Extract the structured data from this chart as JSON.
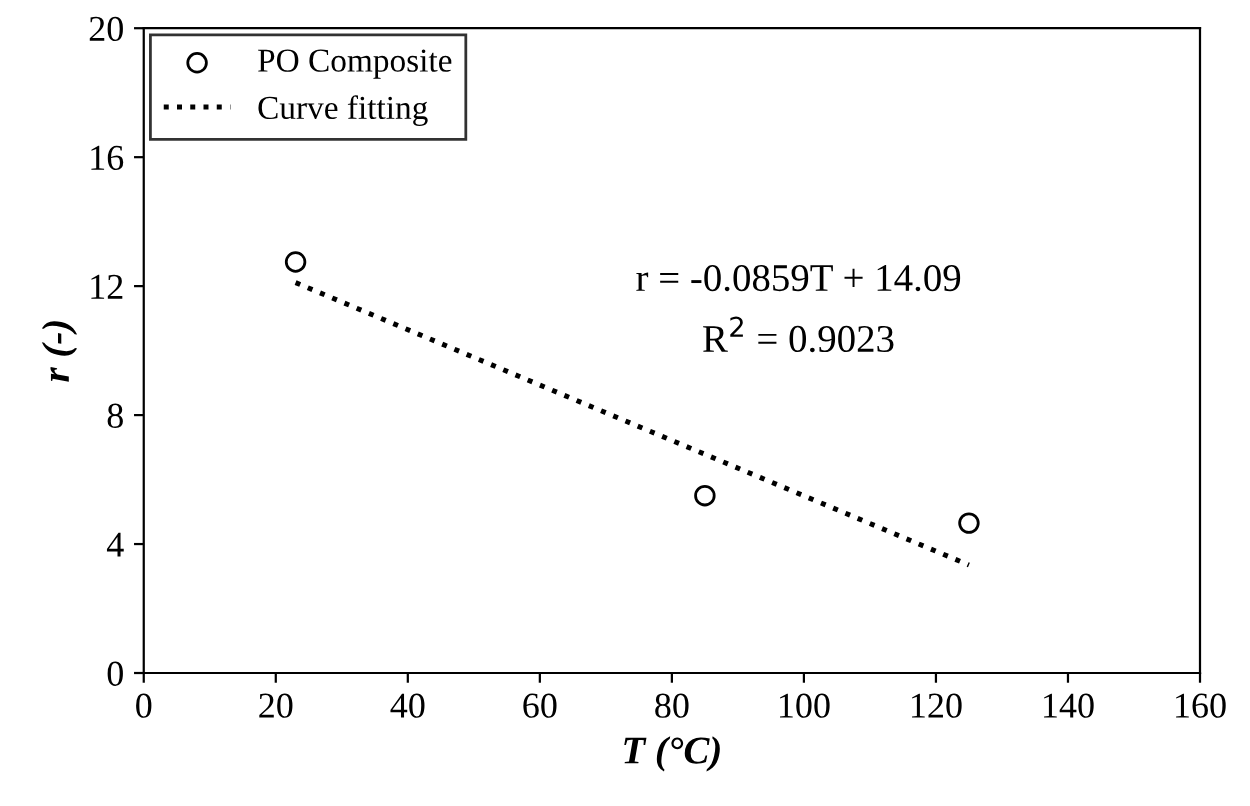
{
  "chart_data": {
    "type": "scatter",
    "xlabel": "T (°C)",
    "ylabel": "r (-)",
    "xlim": [
      0,
      160
    ],
    "xticks": [
      0,
      20,
      40,
      60,
      80,
      100,
      120,
      140,
      160
    ],
    "ylim": [
      0,
      20
    ],
    "yticks": [
      0,
      4,
      8,
      12,
      16,
      20
    ],
    "grid": false,
    "legend": "top left",
    "series": [
      {
        "name": "PO Composite",
        "marker": "circle",
        "color": "#000000",
        "x": [
          23,
          85,
          125
        ],
        "values": [
          12.75,
          5.5,
          4.65
        ]
      },
      {
        "name": "Curve fitting",
        "type": "line",
        "line_style": "dotted",
        "marker": "none",
        "color": "#000000",
        "x": [
          23,
          125
        ],
        "values": [
          12.11,
          3.35
        ]
      }
    ],
    "annotations": [
      "r = -0.0859T + 14.09",
      "R$^{2}$ = 0.9023"
    ]
  }
}
